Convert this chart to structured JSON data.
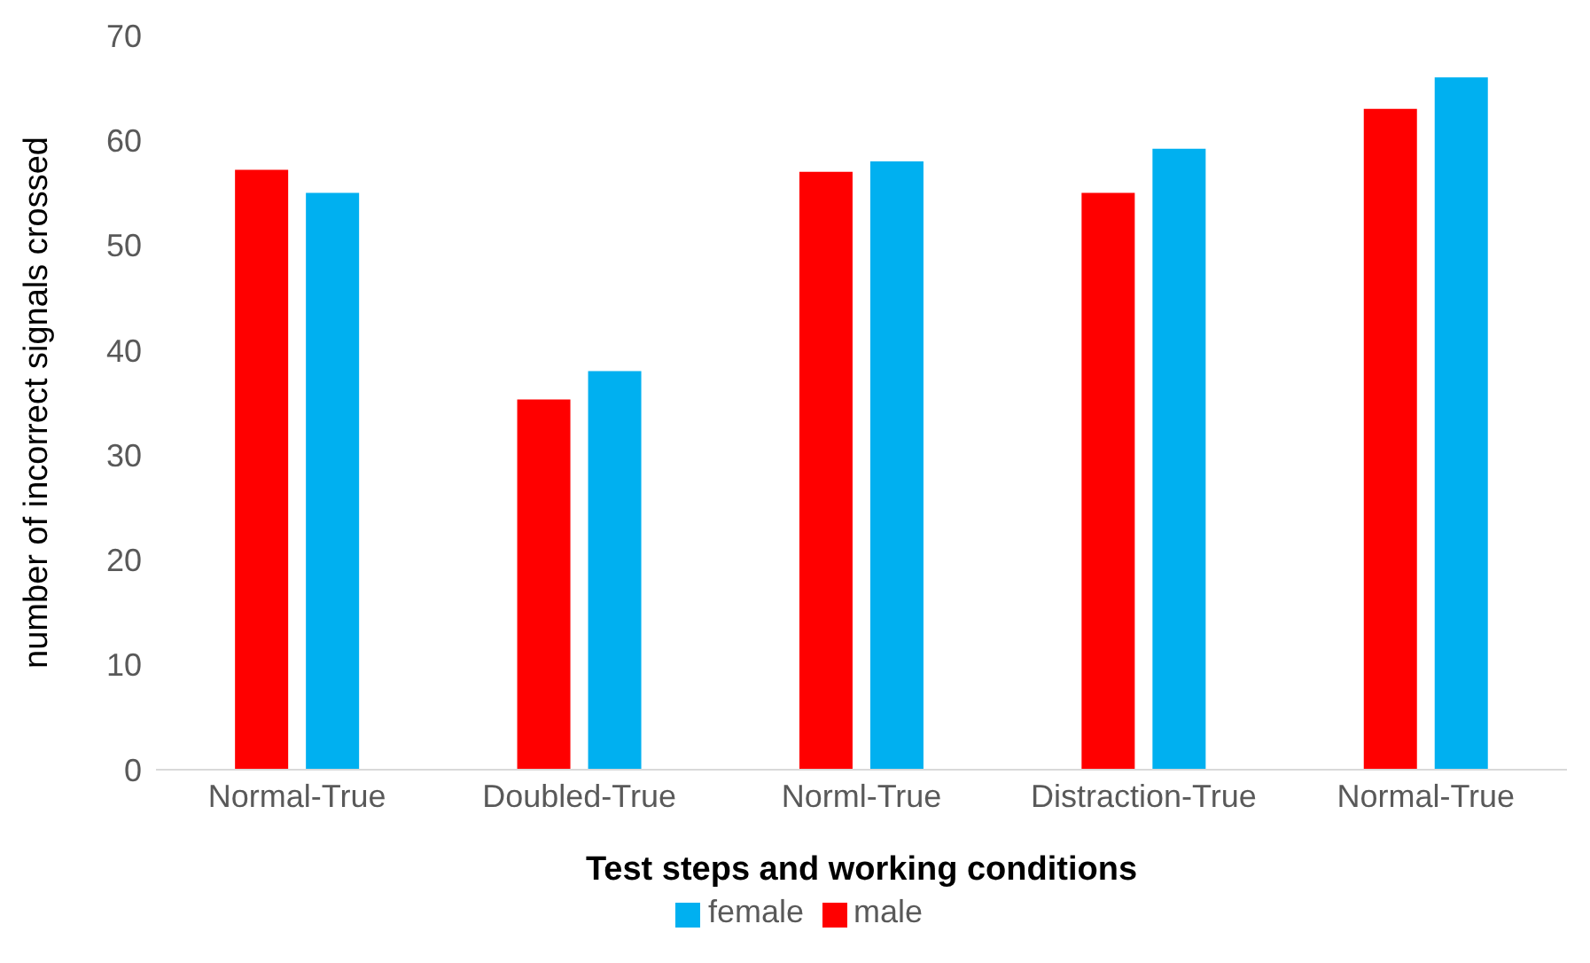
{
  "chart_data": {
    "type": "bar",
    "xlabel": "Test steps and working conditions",
    "ylabel": "number of incorrect signals crossed",
    "categories": [
      "Normal-True",
      "Doubled-True",
      "Norml-True",
      "Distraction-True",
      "Normal-True"
    ],
    "series": [
      {
        "name": "male",
        "color": "#ff0000",
        "values": [
          57.2,
          35.3,
          57,
          55,
          63
        ]
      },
      {
        "name": "female",
        "color": "#00b0f0",
        "values": [
          55,
          38,
          58,
          59.2,
          66
        ]
      }
    ],
    "ylim": [
      0,
      70
    ],
    "yticks": [
      0,
      10,
      20,
      30,
      40,
      50,
      60,
      70
    ],
    "grid": false,
    "legend": "bottom"
  }
}
